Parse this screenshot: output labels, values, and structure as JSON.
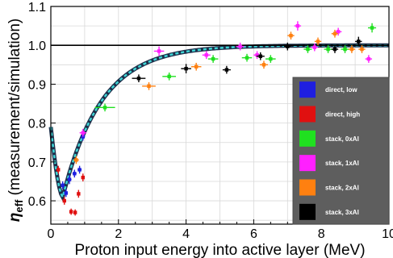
{
  "chart_data": {
    "type": "scatter",
    "xlabel": "Proton input energy into active layer (MeV)",
    "ylabel_main": "η",
    "ylabel_sub": "eff",
    "ylabel_rest": " (measurement/simulation)",
    "xlim": [
      0,
      10
    ],
    "ylim": [
      0.54,
      1.1
    ],
    "xticks": [
      0,
      2,
      4,
      6,
      8,
      10
    ],
    "yticks": [
      0.6,
      0.7,
      0.8,
      0.9,
      1.0,
      1.1
    ],
    "xtick_labels": [
      "0",
      "2",
      "4",
      "6",
      "8",
      "10"
    ],
    "ytick_labels": [
      "0.6",
      "0.7",
      "0.8",
      "0.9",
      "1.0",
      "1.1"
    ],
    "grid": true,
    "legend_position": "right",
    "reference_line": 1.0,
    "series": [
      {
        "name": "direct, low",
        "color": "#1f1fe0",
        "points": [
          [
            0.35,
            0.64,
            0.05,
            0.01
          ],
          [
            0.45,
            0.62,
            0.05,
            0.01
          ],
          [
            0.55,
            0.655,
            0.06,
            0.012
          ],
          [
            0.7,
            0.67,
            0.06,
            0.01
          ],
          [
            0.85,
            0.68,
            0.06,
            0.01
          ],
          [
            0.95,
            0.765,
            0.06,
            0.01
          ]
        ]
      },
      {
        "name": "direct, high",
        "color": "#e01010",
        "points": [
          [
            0.22,
            0.68,
            0.04,
            0.01
          ],
          [
            0.4,
            0.6,
            0.04,
            0.01
          ],
          [
            0.6,
            0.572,
            0.04,
            0.008
          ],
          [
            0.72,
            0.57,
            0.04,
            0.008
          ],
          [
            0.82,
            0.618,
            0.04,
            0.01
          ],
          [
            0.95,
            0.66,
            0.05,
            0.01
          ]
        ]
      },
      {
        "name": "stack, 0xAl",
        "color": "#20e020",
        "points": [
          [
            1.6,
            0.84,
            0.3,
            0.01
          ],
          [
            3.5,
            0.92,
            0.2,
            0.01
          ],
          [
            4.8,
            0.965,
            0.15,
            0.01
          ],
          [
            5.8,
            0.968,
            0.15,
            0.01
          ],
          [
            6.5,
            0.965,
            0.15,
            0.01
          ],
          [
            7.6,
            0.99,
            0.12,
            0.01
          ],
          [
            8.2,
            0.99,
            0.12,
            0.01
          ],
          [
            8.7,
            0.99,
            0.12,
            0.01
          ],
          [
            9.5,
            1.045,
            0.12,
            0.012
          ]
        ]
      },
      {
        "name": "stack, 1xAl",
        "color": "#ff20ff",
        "points": [
          [
            0.95,
            0.775,
            0.1,
            0.01
          ],
          [
            3.2,
            0.985,
            0.15,
            0.012
          ],
          [
            4.6,
            0.975,
            0.12,
            0.01
          ],
          [
            5.6,
            0.997,
            0.12,
            0.01
          ],
          [
            6.1,
            0.975,
            0.1,
            0.01
          ],
          [
            7.3,
            1.05,
            0.1,
            0.012
          ],
          [
            7.8,
            0.995,
            0.1,
            0.01
          ],
          [
            8.5,
            1.035,
            0.1,
            0.01
          ],
          [
            9.4,
            0.965,
            0.1,
            0.01
          ]
        ]
      },
      {
        "name": "stack, 2xAl",
        "color": "#ff8010",
        "points": [
          [
            0.75,
            0.705,
            0.08,
            0.01
          ],
          [
            2.9,
            0.895,
            0.2,
            0.01
          ],
          [
            4.3,
            0.945,
            0.15,
            0.01
          ],
          [
            6.3,
            0.95,
            0.12,
            0.01
          ],
          [
            7.1,
            1.025,
            0.1,
            0.01
          ],
          [
            7.9,
            1.01,
            0.1,
            0.01
          ],
          [
            8.4,
            1.03,
            0.1,
            0.01
          ],
          [
            8.9,
            0.99,
            0.1,
            0.01
          ],
          [
            9.2,
            0.99,
            0.1,
            0.01
          ]
        ]
      },
      {
        "name": "stack, 3xAl",
        "color": "#000000",
        "points": [
          [
            2.6,
            0.915,
            0.2,
            0.01
          ],
          [
            4.0,
            0.94,
            0.15,
            0.012
          ],
          [
            5.2,
            0.937,
            0.12,
            0.01
          ],
          [
            6.2,
            0.972,
            0.12,
            0.01
          ],
          [
            7.0,
            0.997,
            0.1,
            0.01
          ],
          [
            8.4,
            0.99,
            0.1,
            0.01
          ],
          [
            9.1,
            1.01,
            0.1,
            0.012
          ]
        ]
      }
    ]
  }
}
